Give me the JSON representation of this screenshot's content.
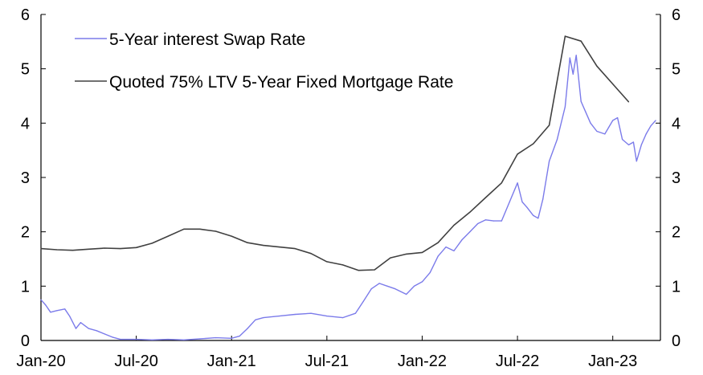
{
  "chart_data": {
    "type": "line",
    "title": "",
    "xlabel": "",
    "ylabel": "",
    "ylim": [
      0,
      6
    ],
    "y_ticks": [
      "0",
      "1",
      "2",
      "3",
      "4",
      "5",
      "6"
    ],
    "x_range": [
      0,
      39
    ],
    "x_ticks": [
      {
        "label": "Jan-20",
        "x": 0
      },
      {
        "label": "Jul-20",
        "x": 6
      },
      {
        "label": "Jan-21",
        "x": 12
      },
      {
        "label": "Jul-21",
        "x": 18
      },
      {
        "label": "Jan-22",
        "x": 24
      },
      {
        "label": "Jul-22",
        "x": 30
      },
      {
        "label": "Jan-23",
        "x": 36
      }
    ],
    "legend_position": "top-left",
    "series": [
      {
        "name": "5-Year interest Swap Rate",
        "color": "#7b7bea",
        "points": [
          [
            0.0,
            0.75
          ],
          [
            0.3,
            0.65
          ],
          [
            0.6,
            0.52
          ],
          [
            1.0,
            0.55
          ],
          [
            1.5,
            0.58
          ],
          [
            1.8,
            0.45
          ],
          [
            2.2,
            0.22
          ],
          [
            2.5,
            0.33
          ],
          [
            3.0,
            0.22
          ],
          [
            3.5,
            0.18
          ],
          [
            4.0,
            0.12
          ],
          [
            4.5,
            0.06
          ],
          [
            5.0,
            0.02
          ],
          [
            6.0,
            0.02
          ],
          [
            7.0,
            0.01
          ],
          [
            8.0,
            0.02
          ],
          [
            9.0,
            0.01
          ],
          [
            10.0,
            0.03
          ],
          [
            11.0,
            0.05
          ],
          [
            12.0,
            0.04
          ],
          [
            12.5,
            0.08
          ],
          [
            13.0,
            0.22
          ],
          [
            13.5,
            0.38
          ],
          [
            14.0,
            0.42
          ],
          [
            15.0,
            0.45
          ],
          [
            16.0,
            0.48
          ],
          [
            17.0,
            0.5
          ],
          [
            18.0,
            0.45
          ],
          [
            19.0,
            0.42
          ],
          [
            19.8,
            0.5
          ],
          [
            20.3,
            0.72
          ],
          [
            20.8,
            0.95
          ],
          [
            21.3,
            1.05
          ],
          [
            21.8,
            1.0
          ],
          [
            22.3,
            0.95
          ],
          [
            23.0,
            0.85
          ],
          [
            23.5,
            1.0
          ],
          [
            24.0,
            1.08
          ],
          [
            24.5,
            1.25
          ],
          [
            25.0,
            1.55
          ],
          [
            25.5,
            1.72
          ],
          [
            26.0,
            1.65
          ],
          [
            26.5,
            1.85
          ],
          [
            27.0,
            2.0
          ],
          [
            27.5,
            2.15
          ],
          [
            28.0,
            2.22
          ],
          [
            28.5,
            2.2
          ],
          [
            29.0,
            2.2
          ],
          [
            29.5,
            2.55
          ],
          [
            30.0,
            2.9
          ],
          [
            30.3,
            2.55
          ],
          [
            30.6,
            2.45
          ],
          [
            31.0,
            2.3
          ],
          [
            31.3,
            2.25
          ],
          [
            31.6,
            2.6
          ],
          [
            32.0,
            3.3
          ],
          [
            32.5,
            3.7
          ],
          [
            33.0,
            4.3
          ],
          [
            33.3,
            5.2
          ],
          [
            33.5,
            4.9
          ],
          [
            33.7,
            5.25
          ],
          [
            34.0,
            4.4
          ],
          [
            34.3,
            4.2
          ],
          [
            34.6,
            4.0
          ],
          [
            35.0,
            3.85
          ],
          [
            35.5,
            3.8
          ],
          [
            36.0,
            4.05
          ],
          [
            36.3,
            4.1
          ],
          [
            36.6,
            3.7
          ],
          [
            37.0,
            3.6
          ],
          [
            37.3,
            3.65
          ],
          [
            37.5,
            3.3
          ],
          [
            37.8,
            3.6
          ],
          [
            38.1,
            3.8
          ],
          [
            38.4,
            3.95
          ],
          [
            38.7,
            4.05
          ]
        ]
      },
      {
        "name": "Quoted 75% LTV 5-Year Fixed Mortgage Rate",
        "color": "#404040",
        "points": [
          [
            0,
            1.69
          ],
          [
            1,
            1.67
          ],
          [
            2,
            1.66
          ],
          [
            3,
            1.68
          ],
          [
            4,
            1.7
          ],
          [
            5,
            1.69
          ],
          [
            6,
            1.71
          ],
          [
            7,
            1.79
          ],
          [
            8,
            1.92
          ],
          [
            9,
            2.05
          ],
          [
            10,
            2.05
          ],
          [
            11,
            2.01
          ],
          [
            12,
            1.92
          ],
          [
            13,
            1.8
          ],
          [
            14,
            1.75
          ],
          [
            15,
            1.72
          ],
          [
            16,
            1.69
          ],
          [
            17,
            1.6
          ],
          [
            18,
            1.45
          ],
          [
            19,
            1.39
          ],
          [
            20,
            1.29
          ],
          [
            21,
            1.3
          ],
          [
            22,
            1.52
          ],
          [
            23,
            1.59
          ],
          [
            24,
            1.62
          ],
          [
            25,
            1.8
          ],
          [
            26,
            2.12
          ],
          [
            27,
            2.36
          ],
          [
            28,
            2.63
          ],
          [
            29,
            2.9
          ],
          [
            30,
            3.43
          ],
          [
            31,
            3.62
          ],
          [
            32,
            3.96
          ],
          [
            33,
            5.6
          ],
          [
            34,
            5.51
          ],
          [
            35,
            5.05
          ],
          [
            36,
            4.72
          ],
          [
            37,
            4.39
          ]
        ]
      }
    ]
  }
}
